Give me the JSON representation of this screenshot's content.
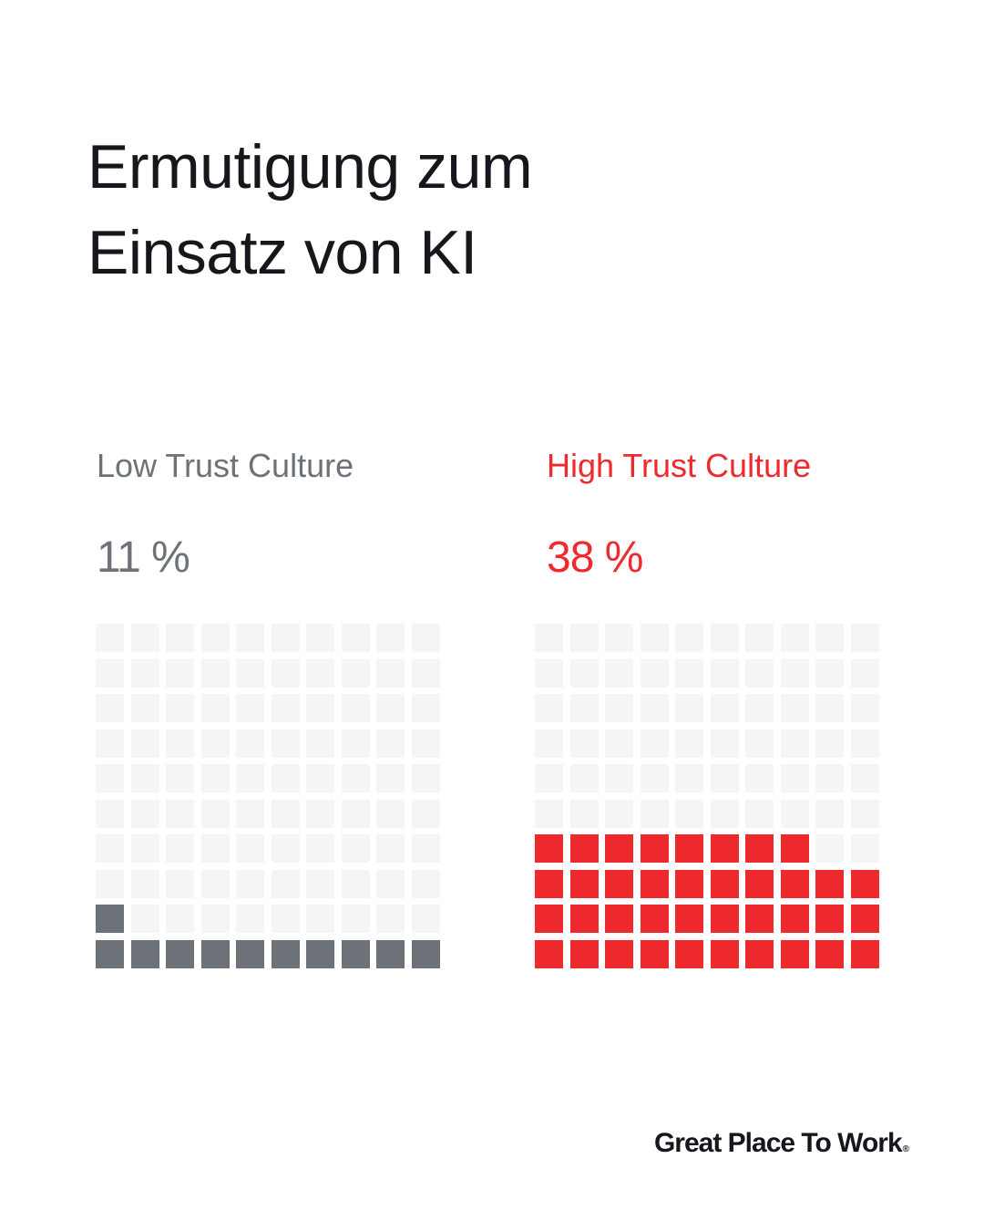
{
  "colors": {
    "title": "#16161d",
    "low": "#6c7278",
    "high": "#ee2a2e",
    "empty": "#f4f5f5"
  },
  "chart_data": {
    "type": "waffle",
    "title": [
      "Ermutigung zum",
      "Einsatz von KI"
    ],
    "grid": {
      "rows": 10,
      "cols": 10
    },
    "series": [
      {
        "name": "Low Trust Culture",
        "value": 11,
        "label": "11 %",
        "color": "#6c7278"
      },
      {
        "name": "High Trust Culture",
        "value": 38,
        "label": "38 %",
        "color": "#ee2a2e"
      }
    ]
  },
  "footer": {
    "logo": "Great Place To Work",
    "logo_mark": "®"
  }
}
